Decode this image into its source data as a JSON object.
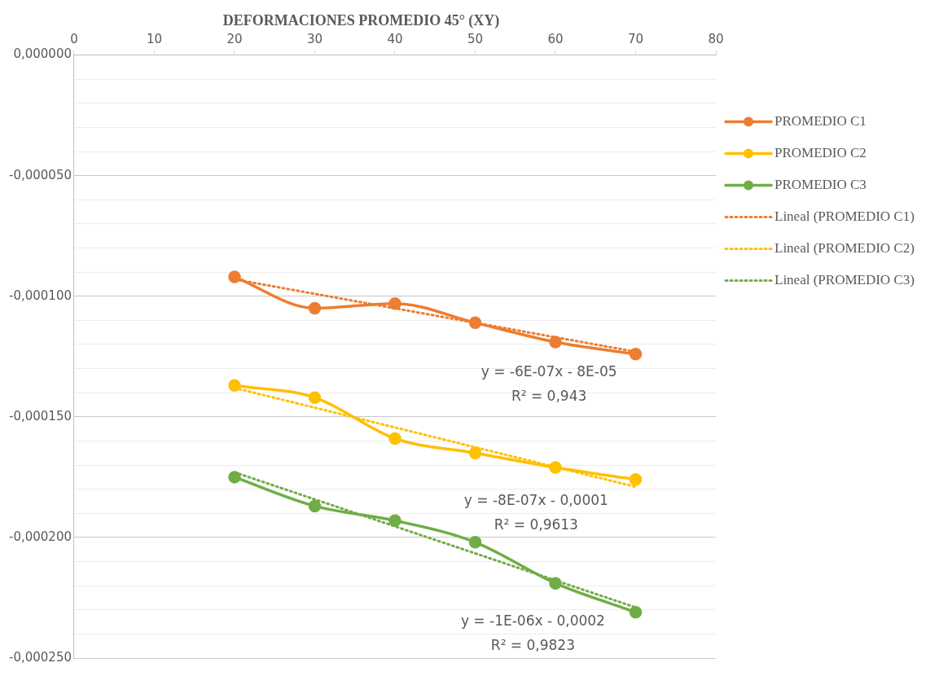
{
  "chart_data": {
    "type": "line",
    "title": "DEFORMACIONES PROMEDIO 45° (XY)",
    "xlim": [
      0,
      80
    ],
    "xticks": [
      0,
      10,
      20,
      30,
      40,
      50,
      60,
      70,
      80
    ],
    "ylim": [
      -0.00025,
      0
    ],
    "yticks": [
      {
        "value": 0,
        "label": "0,000000"
      },
      {
        "value": -1e-05,
        "label": null
      },
      {
        "value": -2e-05,
        "label": null
      },
      {
        "value": -3e-05,
        "label": null
      },
      {
        "value": -4e-05,
        "label": null
      },
      {
        "value": -5e-05,
        "label": "-0,000050"
      },
      {
        "value": -6e-05,
        "label": null
      },
      {
        "value": -7e-05,
        "label": null
      },
      {
        "value": -8e-05,
        "label": null
      },
      {
        "value": -9e-05,
        "label": null
      },
      {
        "value": -0.0001,
        "label": "-0,000100"
      },
      {
        "value": -0.00011,
        "label": null
      },
      {
        "value": -0.00012,
        "label": null
      },
      {
        "value": -0.00013,
        "label": null
      },
      {
        "value": -0.00014,
        "label": null
      },
      {
        "value": -0.00015,
        "label": "-0,000150"
      },
      {
        "value": -0.00016,
        "label": null
      },
      {
        "value": -0.00017,
        "label": null
      },
      {
        "value": -0.00018,
        "label": null
      },
      {
        "value": -0.00019,
        "label": null
      },
      {
        "value": -0.0002,
        "label": "-0,000200"
      },
      {
        "value": -0.00021,
        "label": null
      },
      {
        "value": -0.00022,
        "label": null
      },
      {
        "value": -0.00023,
        "label": null
      },
      {
        "value": -0.00024,
        "label": null
      },
      {
        "value": -0.00025,
        "label": "-0,000250"
      }
    ],
    "grid": "y",
    "legend": "right",
    "series": [
      {
        "name": "PROMEDIO C1",
        "color": "#ed7d31",
        "marker": "circle",
        "line_style": "solid",
        "x": [
          20,
          30,
          40,
          50,
          60,
          70
        ],
        "values": [
          -9.2e-05,
          -0.000105,
          -0.000103,
          -0.000111,
          -0.000119,
          -0.000124
        ]
      },
      {
        "name": "PROMEDIO C2",
        "color": "#ffc000",
        "marker": "circle",
        "line_style": "solid",
        "x": [
          20,
          30,
          40,
          50,
          60,
          70
        ],
        "values": [
          -0.000137,
          -0.000142,
          -0.000159,
          -0.000165,
          -0.000171,
          -0.000176
        ]
      },
      {
        "name": "PROMEDIO C3",
        "color": "#70ad47",
        "marker": "circle",
        "line_style": "solid",
        "x": [
          20,
          30,
          40,
          50,
          60,
          70
        ],
        "values": [
          -0.000175,
          -0.000187,
          -0.000193,
          -0.000202,
          -0.000219,
          -0.000231
        ]
      },
      {
        "name": "Lineal (PROMEDIO C1)",
        "color": "#ed7d31",
        "marker": "none",
        "line_style": "dotted",
        "x": [
          20,
          70
        ],
        "values": [
          -9.3e-05,
          -0.000123
        ]
      },
      {
        "name": "Lineal (PROMEDIO C2)",
        "color": "#ffc000",
        "marker": "none",
        "line_style": "dotted",
        "x": [
          20,
          70
        ],
        "values": [
          -0.000138,
          -0.000179
        ]
      },
      {
        "name": "Lineal (PROMEDIO C3)",
        "color": "#70ad47",
        "marker": "none",
        "line_style": "dotted",
        "x": [
          20,
          70
        ],
        "values": [
          -0.000173,
          -0.000229
        ]
      }
    ],
    "annotations": [
      "y = -6E-07x - 8E-05",
      "R² = 0,943",
      "y = -8E-07x - 0,0001",
      "R² = 0,9613",
      "y = -1E-06x - 0,0002",
      "R² = 0,9823"
    ]
  }
}
